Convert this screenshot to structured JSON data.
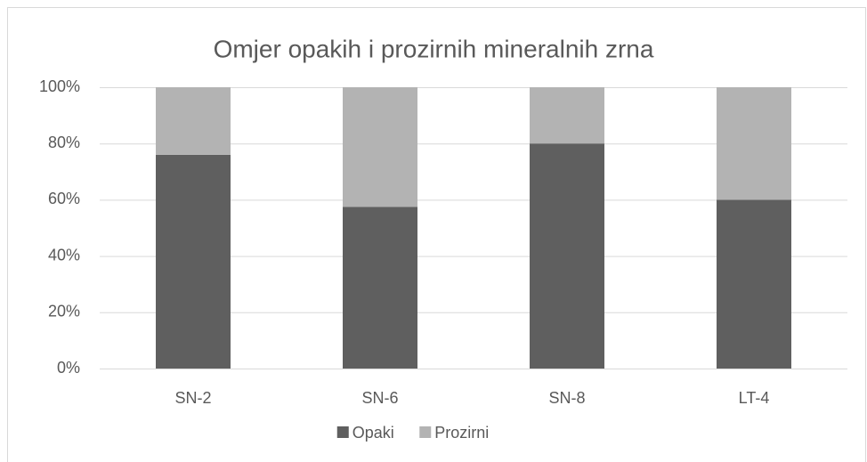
{
  "chart_data": {
    "type": "stacked_bar",
    "title": "Omjer opakih i prozirnih mineralnih zrna",
    "categories": [
      "SN-2",
      "SN-6",
      "SN-8",
      "LT-4"
    ],
    "series": [
      {
        "name": "Opaki",
        "color": "#5f5f5f",
        "values": [
          76,
          57.5,
          80,
          60
        ]
      },
      {
        "name": "Prozirni",
        "color": "#b3b3b3",
        "values": [
          24,
          42.5,
          20,
          40
        ]
      }
    ],
    "ylim": [
      0,
      100
    ],
    "yticks": [
      {
        "value": 0,
        "label": "0%"
      },
      {
        "value": 20,
        "label": "20%"
      },
      {
        "value": 40,
        "label": "40%"
      },
      {
        "value": 60,
        "label": "60%"
      },
      {
        "value": 80,
        "label": "80%"
      },
      {
        "value": 100,
        "label": "100%"
      }
    ],
    "grid": true,
    "legend": "bottom"
  }
}
